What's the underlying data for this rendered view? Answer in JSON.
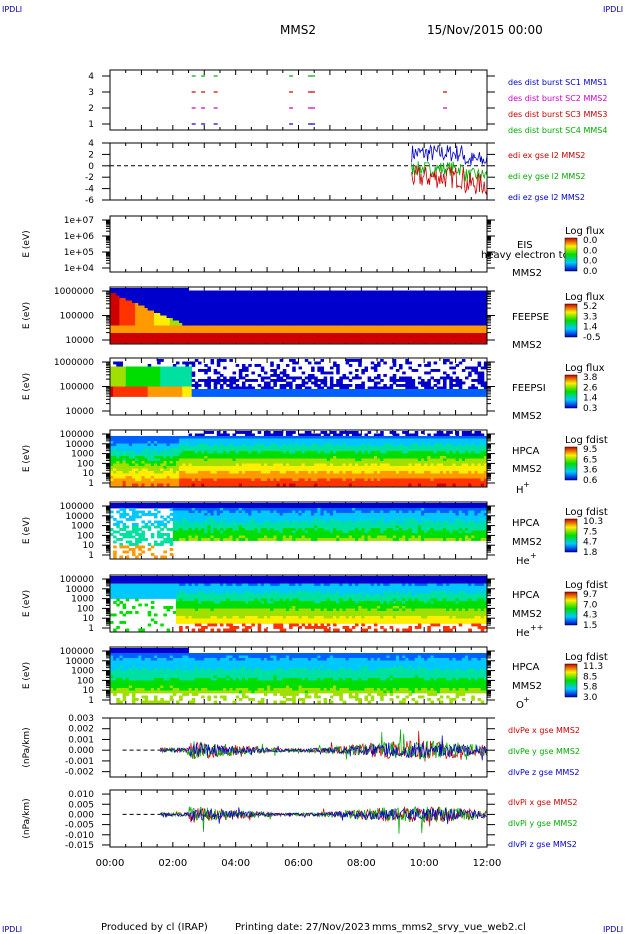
{
  "corner_labels": {
    "top_left": "IPDLI",
    "top_right": "IPDLI",
    "bottom_left": "IPDLI",
    "bottom_right": "IPDLI"
  },
  "header": {
    "spacecraft": "MMS2",
    "date": "15/Nov/2015 00:00"
  },
  "footer": {
    "produced_by": "Produced by cl (IRAP)",
    "printing_date": "Printing date: 27/Nov/2023",
    "filename": "mms_mms2_srvy_vue_web2.cl"
  },
  "time_axis": {
    "start": "00:00",
    "end": "12:00",
    "tick_labels": [
      "00:00",
      "02:00",
      "04:00",
      "06:00",
      "08:00",
      "10:00",
      "12:00"
    ]
  },
  "chart_data": [
    {
      "type": "scatter",
      "panel": "burst",
      "ylabel": "",
      "y_ticks": [
        "4",
        "3",
        "2",
        "1"
      ],
      "ylim": [
        0.5,
        4.5
      ],
      "legend": [
        {
          "name": "des dist burst SC1 MMS1",
          "color": "#0000cc"
        },
        {
          "name": "des dist burst SC2 MMS2",
          "color": "#cc00cc"
        },
        {
          "name": "des dist burst SC3 MMS3",
          "color": "#cc0000"
        },
        {
          "name": "des dist burst SC4 MMS4",
          "color": "#00aa00"
        }
      ],
      "bursts_hours": [
        2.6,
        2.9,
        3.3,
        5.7,
        6.3,
        6.4,
        10.6
      ]
    },
    {
      "type": "line",
      "panel": "edl",
      "ylabel": "(mV/m)",
      "y_ticks": [
        "4",
        "2",
        "0",
        "-2",
        "-4",
        "-6"
      ],
      "ylim": [
        -6,
        4
      ],
      "legend": [
        {
          "name": "edi ex gse l2 MMS2",
          "color": "#cc0000"
        },
        {
          "name": "edi ey gse l2 MMS2",
          "color": "#00aa00"
        },
        {
          "name": "edi ez gse l2 MMS2",
          "color": "#0000cc"
        }
      ],
      "data_range_hours": [
        9.6,
        12.0
      ]
    },
    {
      "type": "heatmap",
      "panel": "eis",
      "ylabel": "E (eV)",
      "y_ticks": [
        "1e+07",
        "1e+06",
        "1e+05",
        "1e+04"
      ],
      "labels": [
        "EIS",
        "MMS2"
      ],
      "overlay_text": "heavy electron to",
      "colorbar": {
        "title": "Log flux",
        "ticks": [
          "0.0",
          "0.0",
          "0.0",
          "0.0"
        ]
      }
    },
    {
      "type": "heatmap",
      "panel": "feepse",
      "ylabel": "E (eV)",
      "y_ticks": [
        "1000000",
        "100000",
        "10000"
      ],
      "labels": [
        "FEEPSE",
        "MMS2"
      ],
      "colorbar": {
        "title": "Log flux",
        "ticks": [
          "5.2",
          "3.3",
          "1.4",
          "-0.5"
        ]
      }
    },
    {
      "type": "heatmap",
      "panel": "feepsi",
      "ylabel": "E (eV)",
      "y_ticks": [
        "1000000",
        "100000",
        "10000"
      ],
      "labels": [
        "FEEPSI",
        "MMS2"
      ],
      "colorbar": {
        "title": "Log flux",
        "ticks": [
          "3.8",
          "2.6",
          "1.4",
          "0.3"
        ]
      }
    },
    {
      "type": "heatmap",
      "panel": "hpca_h",
      "ylabel": "E (eV)",
      "y_ticks": [
        "100000",
        "10000",
        "1000",
        "100",
        "10",
        "1"
      ],
      "labels": [
        "HPCA",
        "MMS2"
      ],
      "species": "H",
      "species_sup": "+",
      "colorbar": {
        "title": "Log fdist",
        "ticks": [
          "9.5",
          "6.5",
          "3.6",
          "0.6"
        ]
      }
    },
    {
      "type": "heatmap",
      "panel": "hpca_he",
      "ylabel": "E (eV)",
      "y_ticks": [
        "100000",
        "10000",
        "1000",
        "100",
        "10",
        "1"
      ],
      "labels": [
        "HPCA",
        "MMS2"
      ],
      "species": "He",
      "species_sup": "+",
      "colorbar": {
        "title": "Log fdist",
        "ticks": [
          "10.3",
          "7.5",
          "4.7",
          "1.8"
        ]
      }
    },
    {
      "type": "heatmap",
      "panel": "hpca_hepp",
      "ylabel": "E (eV)",
      "y_ticks": [
        "100000",
        "10000",
        "1000",
        "100",
        "10",
        "1"
      ],
      "labels": [
        "HPCA",
        "MMS2"
      ],
      "species": "He",
      "species_sup": "++",
      "colorbar": {
        "title": "Log fdist",
        "ticks": [
          "9.7",
          "7.0",
          "4.3",
          "1.5"
        ]
      }
    },
    {
      "type": "heatmap",
      "panel": "hpca_o",
      "ylabel": "E (eV)",
      "y_ticks": [
        "100000",
        "10000",
        "1000",
        "100",
        "10",
        "1"
      ],
      "labels": [
        "HPCA",
        "MMS2"
      ],
      "species": "O",
      "species_sup": "+",
      "colorbar": {
        "title": "Log fdist",
        "ticks": [
          "11.3",
          "8.5",
          "5.8",
          "3.0"
        ]
      }
    },
    {
      "type": "line",
      "panel": "dpe",
      "ylabel": "(nPa/km)",
      "y_ticks": [
        "0.003",
        "0.002",
        "0.001",
        "0.000",
        "-0.001",
        "-0.002"
      ],
      "ylim": [
        -0.0025,
        0.003
      ],
      "legend": [
        {
          "name": "dlvPe x gse MMS2",
          "color": "#cc0000"
        },
        {
          "name": "dlvPe y gse MMS2",
          "color": "#00aa00"
        },
        {
          "name": "dlvPe z gse MMS2",
          "color": "#0000cc"
        }
      ]
    },
    {
      "type": "line",
      "panel": "dpi",
      "ylabel": "(nPa/km)",
      "y_ticks": [
        "0.010",
        "0.005",
        "0.000",
        "-0.005",
        "-0.010",
        "-0.015"
      ],
      "ylim": [
        -0.016,
        0.012
      ],
      "legend": [
        {
          "name": "dlvPi x gse MMS2",
          "color": "#cc0000"
        },
        {
          "name": "dlvPi y gse MMS2",
          "color": "#00aa00"
        },
        {
          "name": "dlvPi z gse MMS2",
          "color": "#0000cc"
        }
      ]
    }
  ]
}
